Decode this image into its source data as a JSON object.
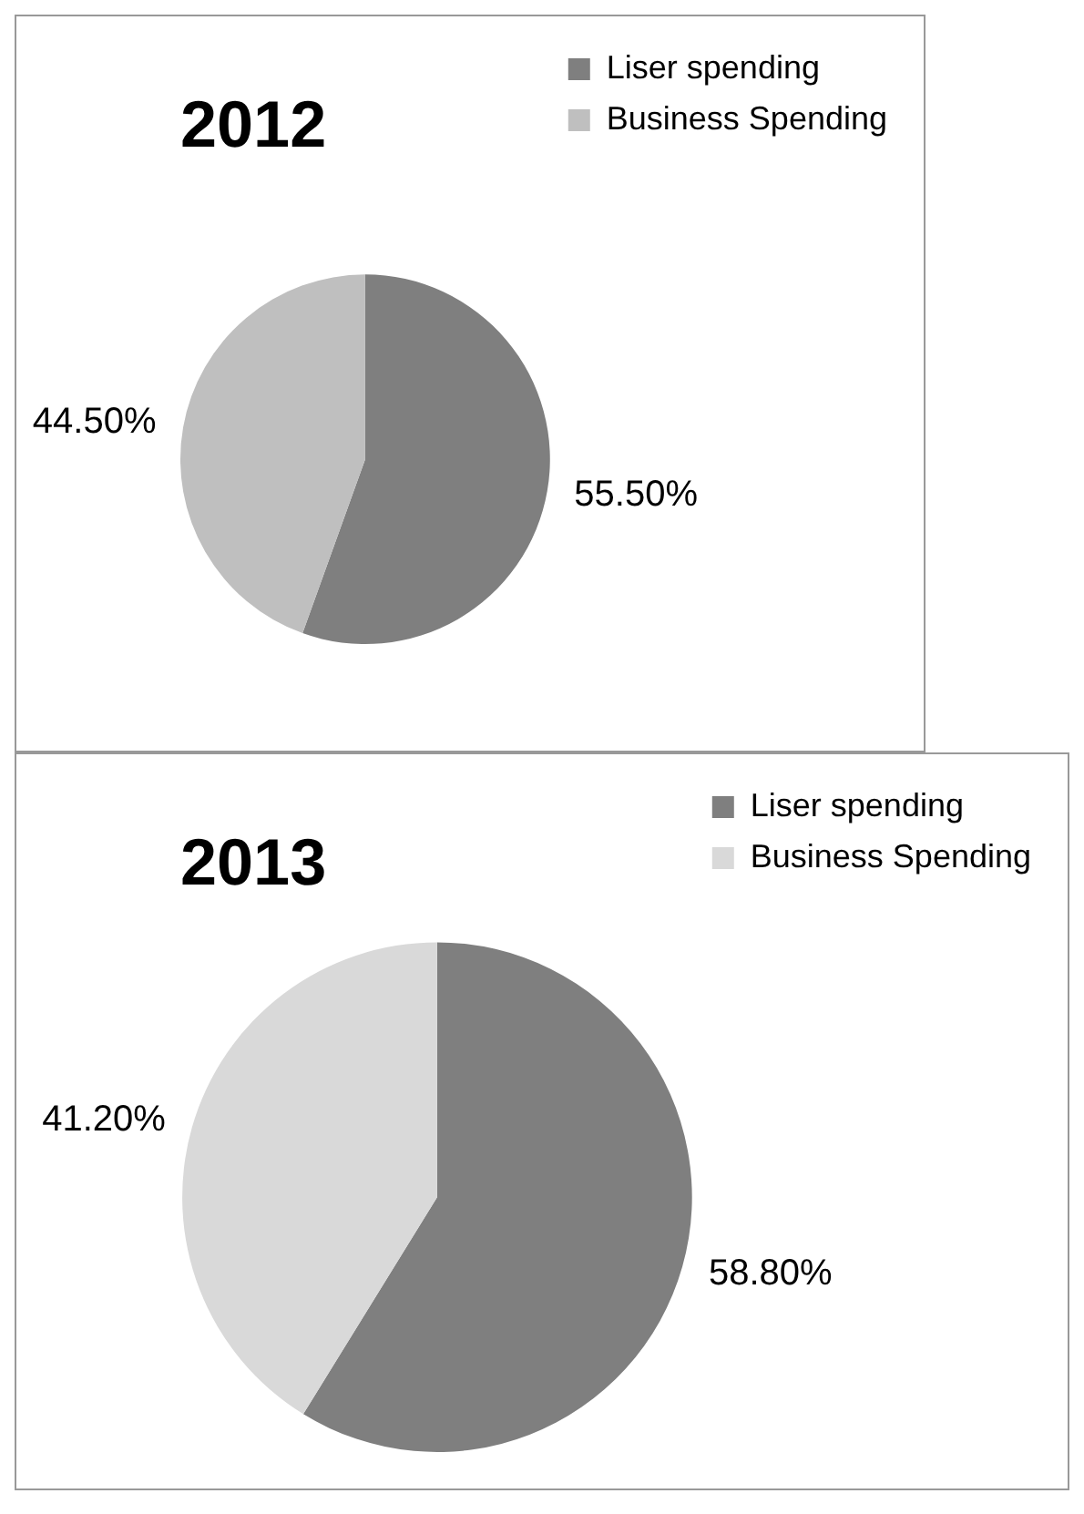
{
  "chart_data": [
    {
      "type": "pie",
      "title": "2012",
      "categories": [
        "Liser spending",
        "Business Spending"
      ],
      "values": [
        55.5,
        44.5
      ],
      "colors": [
        "#7f7f7f",
        "#bfbfbf"
      ],
      "value_labels": [
        "55.50%",
        "44.50%"
      ],
      "legend": "top right"
    },
    {
      "type": "pie",
      "title": "2013",
      "categories": [
        "Liser spending",
        "Business Spending"
      ],
      "values": [
        58.8,
        41.2
      ],
      "colors": [
        "#7f7f7f",
        "#d9d9d9"
      ],
      "value_labels": [
        "58.80%",
        "41.20%"
      ],
      "legend": "top right"
    }
  ]
}
